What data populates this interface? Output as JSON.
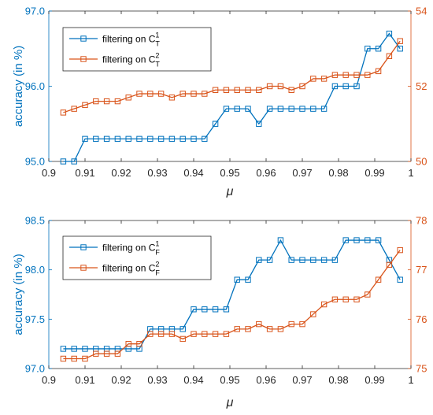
{
  "chart_data": [
    {
      "type": "line",
      "xlabel": "μ",
      "ylabel": "accuracy (in %)",
      "xlim": [
        0.9,
        1.0
      ],
      "xticks": [
        "0.9",
        "0.91",
        "0.92",
        "0.93",
        "0.94",
        "0.95",
        "0.96",
        "0.97",
        "0.98",
        "0.99",
        "1"
      ],
      "ylim_left": [
        95.0,
        97.0
      ],
      "yticks_left": [
        "95.0",
        "96.0",
        "97.0"
      ],
      "ylim_right": [
        50,
        54
      ],
      "yticks_right": [
        "50",
        "52",
        "54"
      ],
      "legend_placement": "top-left",
      "grid": false,
      "x": [
        0.904,
        0.907,
        0.91,
        0.913,
        0.916,
        0.919,
        0.922,
        0.925,
        0.928,
        0.931,
        0.934,
        0.937,
        0.94,
        0.943,
        0.946,
        0.949,
        0.952,
        0.955,
        0.958,
        0.961,
        0.964,
        0.967,
        0.97,
        0.973,
        0.976,
        0.979,
        0.982,
        0.985,
        0.988,
        0.991,
        0.994,
        0.997
      ],
      "series": [
        {
          "name": "filtering on C_T^1",
          "label_main": "filtering on C",
          "label_sup": "1",
          "label_sub": "T",
          "axis": "left",
          "color": "#0072BD",
          "values": [
            95.0,
            95.0,
            95.3,
            95.3,
            95.3,
            95.3,
            95.3,
            95.3,
            95.3,
            95.3,
            95.3,
            95.3,
            95.3,
            95.3,
            95.5,
            95.7,
            95.7,
            95.7,
            95.5,
            95.7,
            95.7,
            95.7,
            95.7,
            95.7,
            95.7,
            96.0,
            96.0,
            96.0,
            96.5,
            96.5,
            96.7,
            96.5
          ]
        },
        {
          "name": "filtering on C_T^2",
          "label_main": "filtering on C",
          "label_sup": "2",
          "label_sub": "T",
          "axis": "right",
          "color": "#D95319",
          "values": [
            51.3,
            51.4,
            51.5,
            51.6,
            51.6,
            51.6,
            51.7,
            51.8,
            51.8,
            51.8,
            51.7,
            51.8,
            51.8,
            51.8,
            51.9,
            51.9,
            51.9,
            51.9,
            51.9,
            52.0,
            52.0,
            51.9,
            52.0,
            52.2,
            52.2,
            52.3,
            52.3,
            52.3,
            52.3,
            52.4,
            52.8,
            53.2
          ]
        }
      ]
    },
    {
      "type": "line",
      "xlabel": "μ",
      "ylabel": "accuracy (in %)",
      "xlim": [
        0.9,
        1.0
      ],
      "xticks": [
        "0.9",
        "0.91",
        "0.92",
        "0.93",
        "0.94",
        "0.95",
        "0.96",
        "0.97",
        "0.98",
        "0.99",
        "1"
      ],
      "ylim_left": [
        97.0,
        98.5
      ],
      "yticks_left": [
        "97.0",
        "97.5",
        "98.0",
        "98.5"
      ],
      "ylim_right": [
        75,
        78
      ],
      "yticks_right": [
        "75",
        "76",
        "77",
        "78"
      ],
      "legend_placement": "top-left",
      "grid": false,
      "x": [
        0.904,
        0.907,
        0.91,
        0.913,
        0.916,
        0.919,
        0.922,
        0.925,
        0.928,
        0.931,
        0.934,
        0.937,
        0.94,
        0.943,
        0.946,
        0.949,
        0.952,
        0.955,
        0.958,
        0.961,
        0.964,
        0.967,
        0.97,
        0.973,
        0.976,
        0.979,
        0.982,
        0.985,
        0.988,
        0.991,
        0.994,
        0.997
      ],
      "series": [
        {
          "name": "filtering on C_F^1",
          "label_main": "filtering on C",
          "label_sup": "1",
          "label_sub": "F",
          "axis": "left",
          "color": "#0072BD",
          "values": [
            97.2,
            97.2,
            97.2,
            97.2,
            97.2,
            97.2,
            97.2,
            97.2,
            97.4,
            97.4,
            97.4,
            97.4,
            97.6,
            97.6,
            97.6,
            97.6,
            97.9,
            97.9,
            98.1,
            98.1,
            98.3,
            98.1,
            98.1,
            98.1,
            98.1,
            98.1,
            98.3,
            98.3,
            98.3,
            98.3,
            98.1,
            97.9
          ]
        },
        {
          "name": "filtering on C_F^2",
          "label_main": "filtering on C",
          "label_sup": "2",
          "label_sub": "F",
          "axis": "right",
          "color": "#D95319",
          "values": [
            75.2,
            75.2,
            75.2,
            75.3,
            75.3,
            75.3,
            75.5,
            75.5,
            75.7,
            75.7,
            75.7,
            75.6,
            75.7,
            75.7,
            75.7,
            75.7,
            75.8,
            75.8,
            75.9,
            75.8,
            75.8,
            75.9,
            75.9,
            76.1,
            76.3,
            76.4,
            76.4,
            76.4,
            76.5,
            76.8,
            77.1,
            77.4
          ]
        }
      ]
    }
  ]
}
